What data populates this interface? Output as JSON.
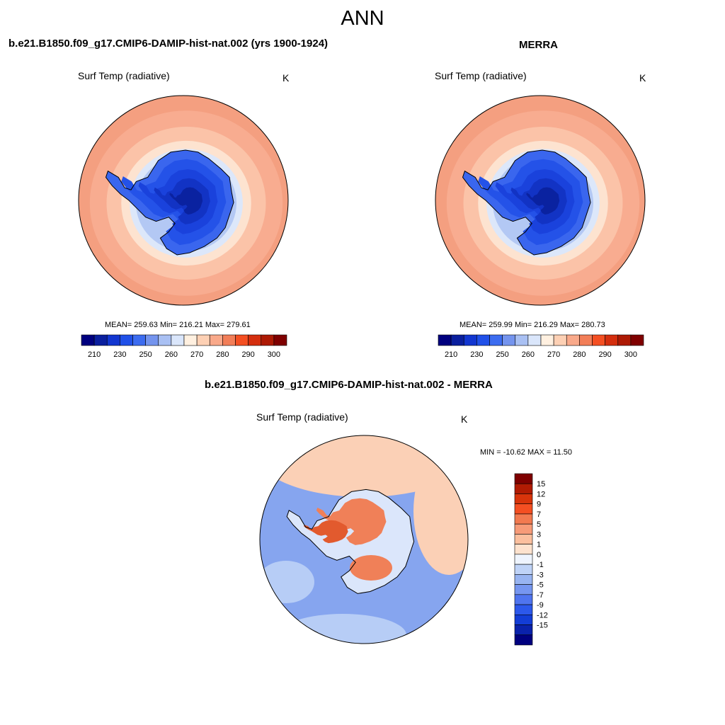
{
  "page": {
    "title": "ANN"
  },
  "panels": {
    "model": {
      "title": "b.e21.B1850.f09_g17.CMIP6-DAMIP-hist-nat.002 (yrs 1900-1924)",
      "variable": "Surf Temp (radiative)",
      "units": "K",
      "stats": "MEAN= 259.63  Min= 216.21  Max= 279.61"
    },
    "obs": {
      "title": "MERRA",
      "variable": "Surf Temp (radiative)",
      "units": "K",
      "stats": "MEAN= 259.99  Min= 216.29  Max= 280.73"
    },
    "diff": {
      "title": "b.e21.B1850.f09_g17.CMIP6-DAMIP-hist-nat.002 - MERRA",
      "variable": "Surf Temp (radiative)",
      "units": "K",
      "stats": "MIN = -10.62 MAX =  11.50"
    }
  },
  "colorbars": {
    "absolute": {
      "colors": [
        "#00007f",
        "#0a1f9e",
        "#1236d0",
        "#2050e8",
        "#3c6cf0",
        "#7494ee",
        "#a9c0f3",
        "#dae6fb",
        "#fff0e0",
        "#fdd0b4",
        "#f9a98a",
        "#f27e58",
        "#f44f22",
        "#d42e0e",
        "#ad1a04",
        "#7f0000"
      ],
      "tick_labels": [
        "210",
        "230",
        "250",
        "260",
        "270",
        "280",
        "290",
        "300"
      ]
    },
    "difference": {
      "colors": [
        "#7f0000",
        "#b11b03",
        "#d8340b",
        "#f44f22",
        "#f27a50",
        "#f79b78",
        "#fbbf9e",
        "#fde2ce",
        "#eef4fe",
        "#bfd3f7",
        "#98b4f1",
        "#7696f0",
        "#4f74ef",
        "#2c58eb",
        "#133dd6",
        "#0a22ab",
        "#00007f"
      ],
      "tick_labels": [
        "15",
        "12",
        "9",
        "7",
        "5",
        "3",
        "1",
        "0",
        "-1",
        "-3",
        "-5",
        "-7",
        "-9",
        "-12",
        "-15"
      ]
    }
  },
  "map_palette": {
    "abs_rings": [
      "#f49f80",
      "#f8ac90",
      "#fbc3a8",
      "#fde3d0",
      "#dce7fa",
      "#b3c8f4"
    ],
    "ice_levels": [
      "#3a66ee",
      "#2452e8",
      "#1a42dc",
      "#1233c4",
      "#0a22a0"
    ],
    "coast": "#000000",
    "diff_ocean": "#86a5ef",
    "diff_ocean_light": "#b7cdf6",
    "diff_warm": "#fbd0b6",
    "diff_hot": "#f08058",
    "diff_hotter": "#e25a2e",
    "diff_land_light": "#dbe6fb"
  }
}
